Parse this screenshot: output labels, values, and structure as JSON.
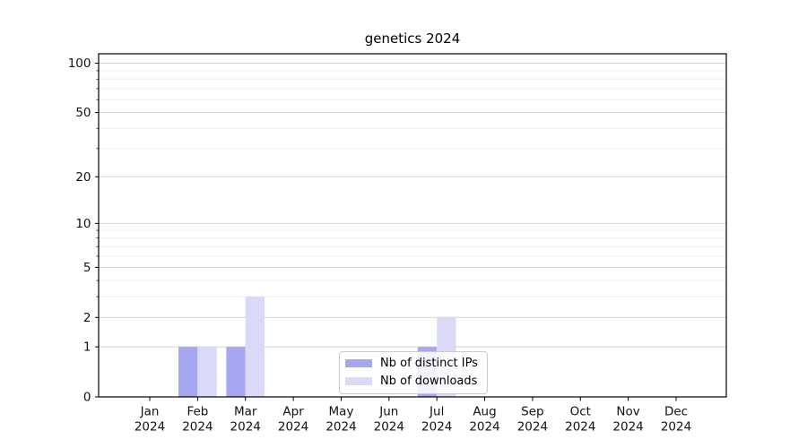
{
  "chart_data": {
    "type": "bar",
    "title": "genetics 2024",
    "xlabel": "",
    "ylabel": "",
    "year": "2024",
    "categories": [
      "Jan",
      "Feb",
      "Mar",
      "Apr",
      "May",
      "Jun",
      "Jul",
      "Aug",
      "Sep",
      "Oct",
      "Nov",
      "Dec"
    ],
    "series": [
      {
        "name": "Nb of distinct IPs",
        "color": "#a6a6f1",
        "values": [
          0,
          1,
          1,
          0,
          0,
          0,
          1,
          0,
          0,
          0,
          0,
          0
        ]
      },
      {
        "name": "Nb of downloads",
        "color": "#dadaf8",
        "values": [
          0,
          1,
          3,
          0,
          0,
          0,
          2,
          0,
          0,
          0,
          0,
          0
        ]
      }
    ],
    "y_axis": {
      "scale": "symlog",
      "major_ticks": [
        0,
        1,
        2,
        5,
        10,
        20,
        50,
        100
      ],
      "minor_ticks": [
        3,
        4,
        6,
        7,
        8,
        9,
        30,
        40,
        60,
        70,
        80,
        90
      ],
      "ylim": [
        0,
        114
      ]
    },
    "x_axis": {
      "tick_label_format": "month over year, two lines"
    },
    "grid": {
      "major_color": "#d2d2d2",
      "minor_color": "#ededed",
      "vertical": false
    },
    "legend": {
      "position": "lower-center-inside"
    },
    "colors": {
      "axis": "#000000",
      "text": "#111111",
      "background": "#ffffff"
    }
  }
}
